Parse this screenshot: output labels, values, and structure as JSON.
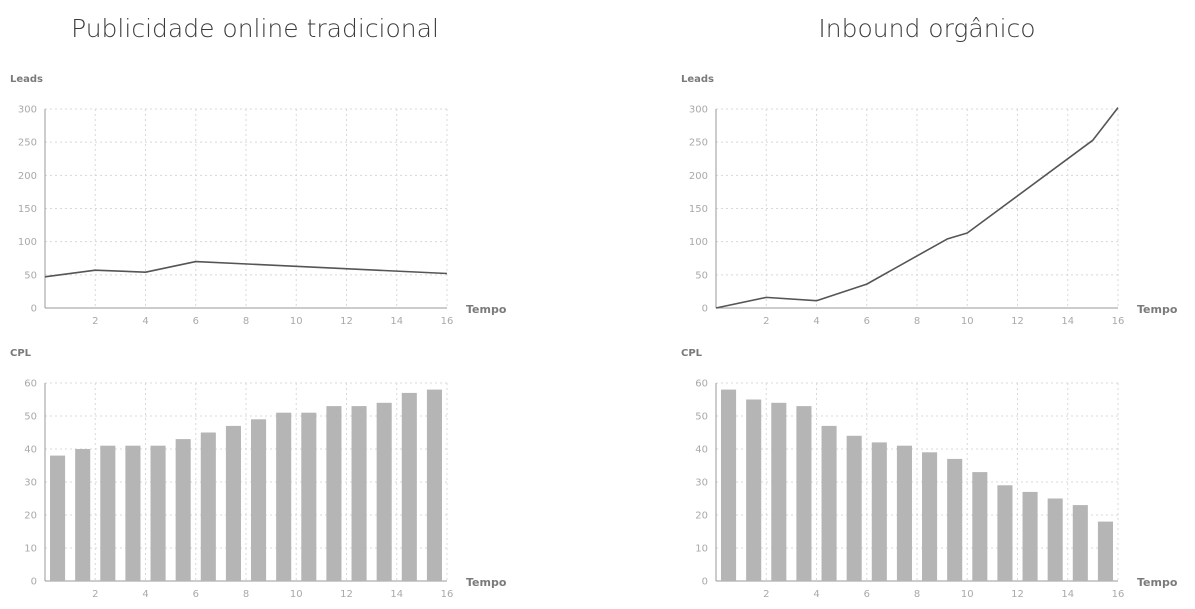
{
  "columns": [
    {
      "title": "Publicidade online tradicional"
    },
    {
      "title": "Inbound orgânico"
    }
  ],
  "colors": {
    "line": "#555555",
    "bar": "#b5b5b5",
    "grid": "#d8d8d8",
    "axis": "#999999"
  },
  "chart_data": [
    {
      "type": "line",
      "ylabel": "Leads",
      "xlabel": "Tempo",
      "ylim": [
        0,
        300
      ],
      "xlim": [
        0,
        16
      ],
      "yticks": [
        0,
        50,
        100,
        150,
        200,
        250,
        300
      ],
      "xticks": [
        2,
        4,
        6,
        8,
        10,
        12,
        14,
        16
      ],
      "grid": true,
      "x": [
        0,
        2,
        4,
        6,
        16
      ],
      "values": [
        47,
        57,
        54,
        70,
        52
      ]
    },
    {
      "type": "bar",
      "ylabel": "CPL",
      "xlabel": "Tempo",
      "ylim": [
        0,
        60
      ],
      "xlim": [
        0,
        16
      ],
      "yticks": [
        0,
        10,
        20,
        30,
        40,
        50,
        60
      ],
      "xticks": [
        2,
        4,
        6,
        8,
        10,
        12,
        14,
        16
      ],
      "grid": true,
      "x": [
        0.5,
        1.5,
        2.5,
        3.5,
        4.5,
        5.5,
        6.5,
        7.5,
        8.5,
        9.5,
        10.5,
        11.5,
        12.5,
        13.5,
        14.5,
        15.5
      ],
      "values": [
        38,
        40,
        41,
        41,
        41,
        43,
        45,
        47,
        49,
        51,
        51,
        53,
        53,
        54,
        57,
        58
      ]
    },
    {
      "type": "line",
      "ylabel": "Leads",
      "xlabel": "Tempo",
      "ylim": [
        0,
        300
      ],
      "xlim": [
        0,
        16
      ],
      "yticks": [
        0,
        50,
        100,
        150,
        200,
        250,
        300
      ],
      "xticks": [
        2,
        4,
        6,
        8,
        10,
        12,
        14,
        16
      ],
      "grid": true,
      "x": [
        0,
        2,
        4,
        6,
        9.2,
        10,
        15,
        16
      ],
      "values": [
        0,
        16,
        11,
        36,
        104,
        113,
        253,
        302
      ]
    },
    {
      "type": "bar",
      "ylabel": "CPL",
      "xlabel": "Tempo",
      "ylim": [
        0,
        60
      ],
      "xlim": [
        0,
        16
      ],
      "yticks": [
        0,
        10,
        20,
        30,
        40,
        50,
        60
      ],
      "xticks": [
        2,
        4,
        6,
        8,
        10,
        12,
        14,
        16
      ],
      "grid": true,
      "x": [
        0.5,
        1.5,
        2.5,
        3.5,
        4.5,
        5.5,
        6.5,
        7.5,
        8.5,
        9.5,
        10.5,
        11.5,
        12.5,
        13.5,
        14.5,
        15.5
      ],
      "values": [
        58,
        55,
        54,
        53,
        47,
        44,
        42,
        41,
        39,
        37,
        33,
        29,
        27,
        25,
        23,
        18
      ]
    }
  ]
}
